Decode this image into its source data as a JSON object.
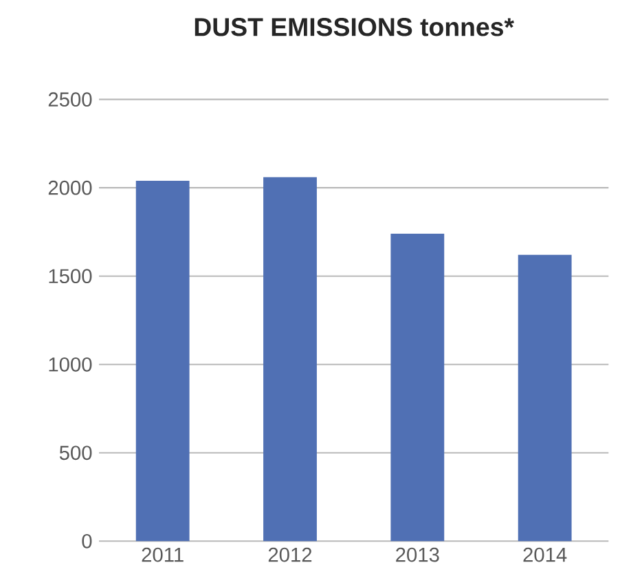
{
  "chart_data": {
    "type": "bar",
    "title": "DUST EMISSIONS tonnes*",
    "categories": [
      "2011",
      "2012",
      "2013",
      "2014"
    ],
    "values": [
      2040,
      2060,
      1740,
      1620
    ],
    "color": "#5070b4",
    "ylim": [
      0,
      2500
    ],
    "yticks": [
      0,
      500,
      1000,
      1500,
      2000,
      2500
    ],
    "grid": "y"
  }
}
